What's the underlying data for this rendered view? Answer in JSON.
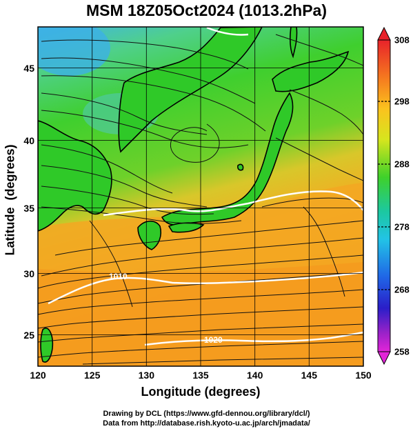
{
  "title": "MSM 18Z05Oct2024 (1013.2hPa)",
  "x_axis": {
    "label": "Longitude (degrees)",
    "ticks": [
      "120",
      "125",
      "130",
      "135",
      "140",
      "145",
      "150"
    ]
  },
  "y_axis": {
    "label": "Latitude  (degrees)",
    "ticks": [
      "25",
      "30",
      "35",
      "40",
      "45"
    ]
  },
  "colorbar": {
    "ticks": [
      "308",
      "298",
      "288",
      "278",
      "268",
      "258"
    ]
  },
  "contour_labels": [
    "1010",
    "1020"
  ],
  "credits": {
    "line1": "Drawing by DCL (https://www.gfd-dennou.org/library/dcl/)",
    "line2": "Data from http://database.rish.kyoto-u.ac.jp/arch/jmadata/"
  },
  "colors": {
    "warm": "#f5a11e",
    "cool": "#29d229",
    "cold": "#2fa6e6",
    "isobar": "#ffffff"
  }
}
